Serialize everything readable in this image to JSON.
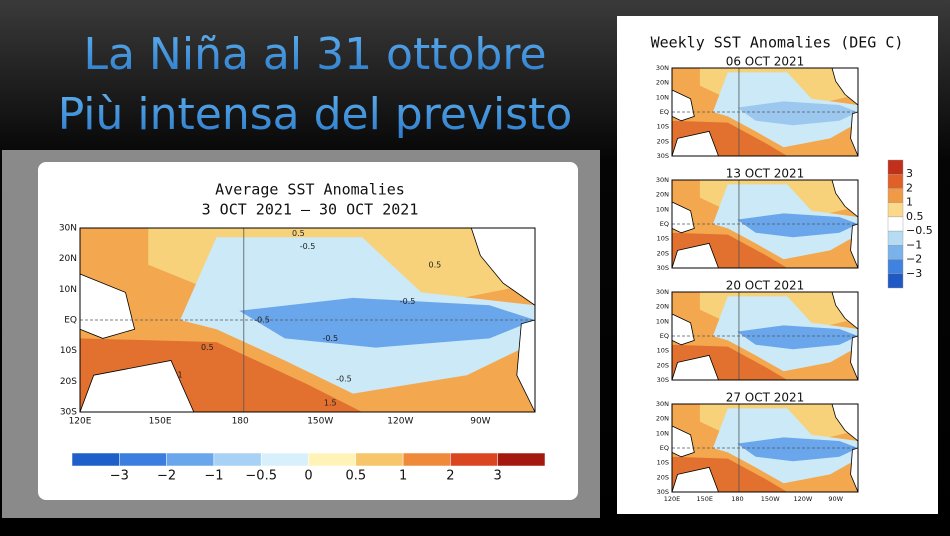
{
  "slide": {
    "title_lines": [
      "La Niña al 31 ottobre",
      "Più intensa del previsto"
    ]
  },
  "main_map": {
    "title": "Average SST Anomalies",
    "subtitle": "3 OCT 2021 – 30 OCT 2021",
    "lat_labels": [
      "30N",
      "20N",
      "10N",
      "EQ",
      "10S",
      "20S",
      "30S"
    ],
    "lon_labels": [
      "120E",
      "150E",
      "180",
      "150W",
      "120W",
      "90W"
    ],
    "contour_labels": [
      "0.5",
      "-0.5",
      "0.5",
      "-0.5",
      "-0.5",
      "-0.5",
      "0.5",
      "1",
      "-0.5",
      "1.5"
    ],
    "colorbar_labels": [
      "−3",
      "−2",
      "−1",
      "−0.5",
      "0",
      "0.5",
      "1",
      "2",
      "3"
    ]
  },
  "weekly": {
    "title": "Weekly SST Anomalies (DEG C)",
    "panels": [
      {
        "date": "06 OCT 2021"
      },
      {
        "date": "13 OCT 2021"
      },
      {
        "date": "20 OCT 2021"
      },
      {
        "date": "27 OCT 2021"
      }
    ],
    "lat_labels": [
      "30N",
      "20N",
      "10N",
      "EQ",
      "10S",
      "20S",
      "30S"
    ],
    "lon_labels": [
      "120E",
      "150E",
      "180",
      "150W",
      "120W",
      "90W"
    ],
    "colorbar_labels": [
      "3",
      "2",
      "1",
      "0.5",
      "−0.5",
      "−1",
      "−2",
      "−3"
    ]
  }
}
